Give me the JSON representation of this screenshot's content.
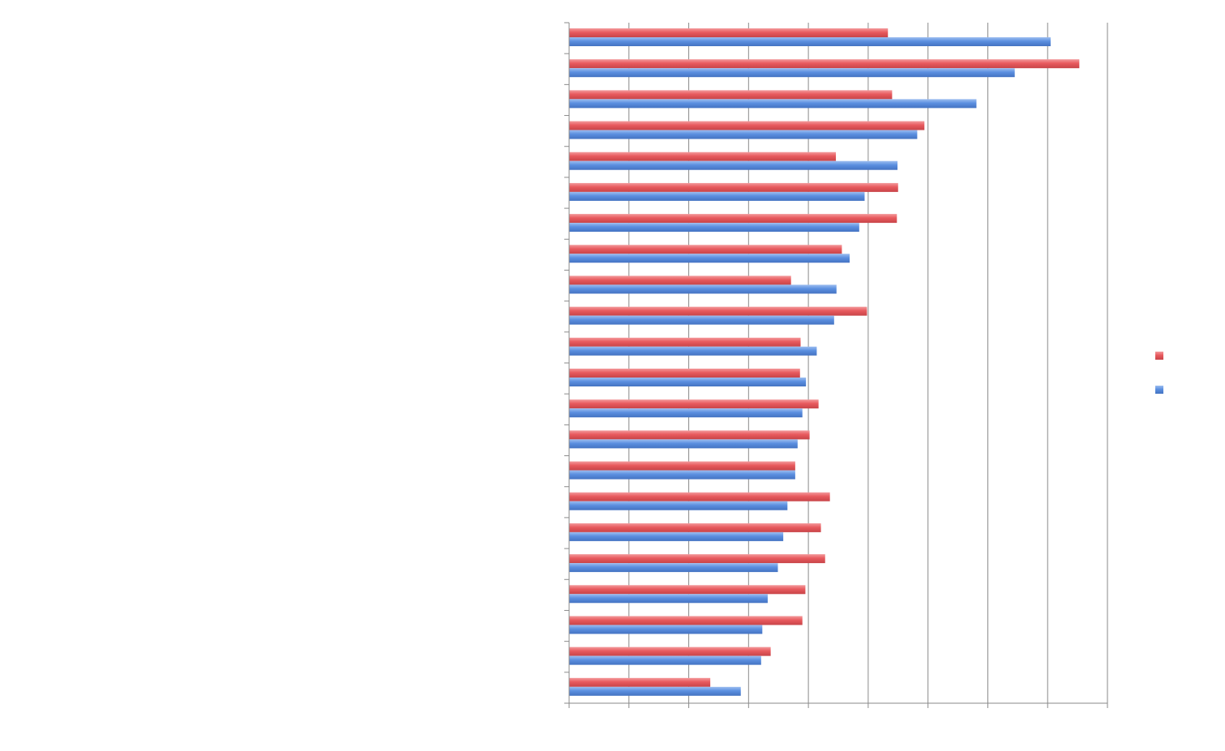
{
  "chart_data": {
    "type": "bar",
    "orientation": "horizontal",
    "title": "",
    "xlabel": "",
    "ylabel": "",
    "grid": true,
    "legend_position": "right",
    "xlim": [
      0,
      9
    ],
    "tick_labels_visible": false,
    "category_count": 22,
    "series": [
      {
        "name": "",
        "color": "#e85a5e",
        "values": [
          5.33,
          8.53,
          5.4,
          5.94,
          4.46,
          5.5,
          5.48,
          4.56,
          3.71,
          4.98,
          3.87,
          3.86,
          4.17,
          4.02,
          3.78,
          4.36,
          4.21,
          4.28,
          3.95,
          3.9,
          3.37,
          2.36
        ]
      },
      {
        "name": "",
        "color": "#5b8fe0",
        "values": [
          8.05,
          7.45,
          6.81,
          5.82,
          5.49,
          4.94,
          4.85,
          4.69,
          4.47,
          4.43,
          4.14,
          3.96,
          3.9,
          3.82,
          3.78,
          3.65,
          3.58,
          3.49,
          3.32,
          3.23,
          3.21,
          2.87
        ]
      }
    ]
  }
}
